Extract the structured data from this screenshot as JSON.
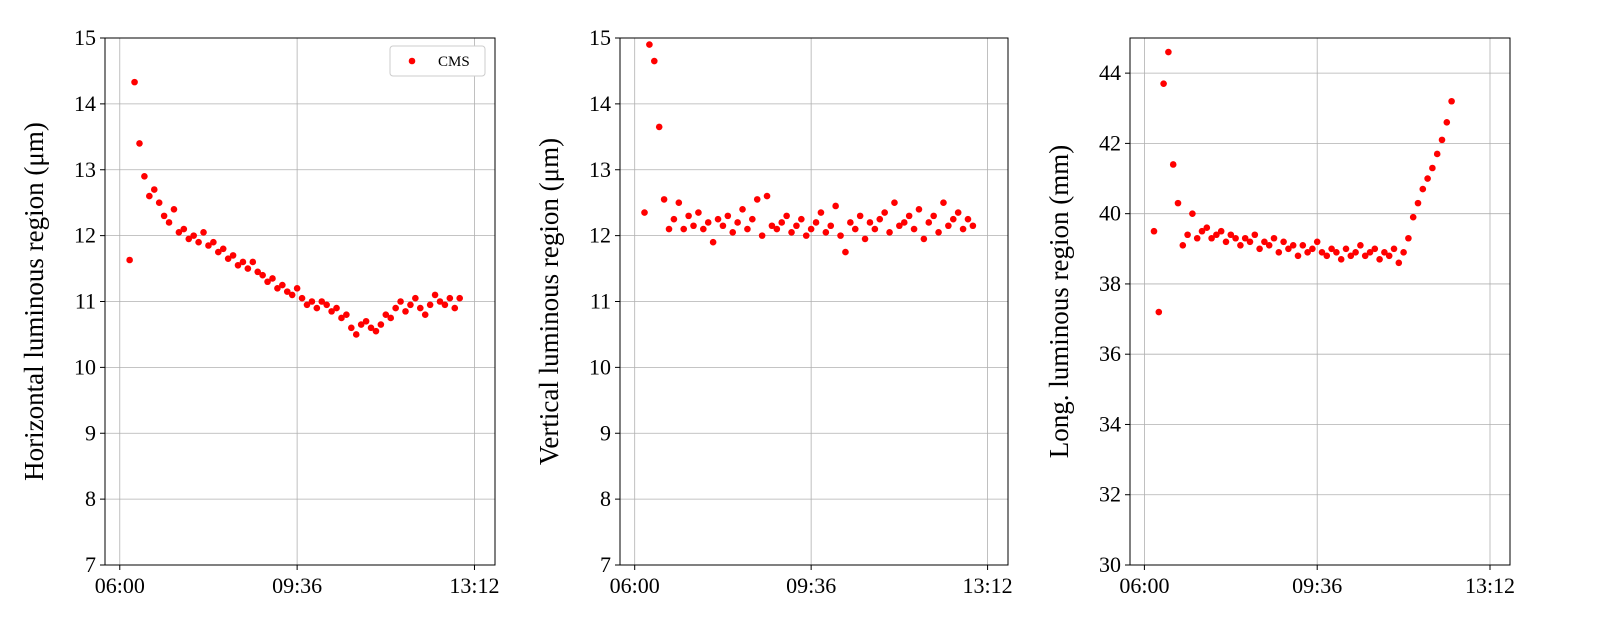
{
  "chart_data": [
    {
      "type": "scatter",
      "ylabel": "Horizontal luminous region (μm)",
      "x": [
        "06:12",
        "06:18",
        "06:24",
        "06:30",
        "06:36",
        "06:42",
        "06:48",
        "06:54",
        "07:00",
        "07:06",
        "07:12",
        "07:18",
        "07:24",
        "07:30",
        "07:36",
        "07:42",
        "07:48",
        "07:54",
        "08:00",
        "08:06",
        "08:12",
        "08:18",
        "08:24",
        "08:30",
        "08:36",
        "08:42",
        "08:48",
        "08:54",
        "09:00",
        "09:06",
        "09:12",
        "09:18",
        "09:24",
        "09:30",
        "09:36",
        "09:42",
        "09:48",
        "09:54",
        "10:00",
        "10:06",
        "10:12",
        "10:18",
        "10:24",
        "10:30",
        "10:36",
        "10:42",
        "10:48",
        "10:54",
        "11:00",
        "11:06",
        "11:12",
        "11:18",
        "11:24",
        "11:30",
        "11:36",
        "11:42",
        "11:48",
        "11:54",
        "12:00",
        "12:06",
        "12:12",
        "12:18",
        "12:24",
        "12:30",
        "12:36",
        "12:42",
        "12:48",
        "12:54"
      ],
      "series": [
        {
          "name": "CMS",
          "color": "#ff0000",
          "values": [
            11.63,
            14.33,
            13.4,
            12.9,
            12.6,
            12.7,
            12.5,
            12.3,
            12.2,
            12.4,
            12.05,
            12.1,
            11.95,
            12.0,
            11.9,
            12.05,
            11.85,
            11.9,
            11.75,
            11.8,
            11.65,
            11.7,
            11.55,
            11.6,
            11.5,
            11.6,
            11.45,
            11.4,
            11.3,
            11.35,
            11.2,
            11.25,
            11.15,
            11.1,
            11.2,
            11.05,
            10.95,
            11.0,
            10.9,
            11.0,
            10.95,
            10.85,
            10.9,
            10.75,
            10.8,
            10.6,
            10.5,
            10.65,
            10.7,
            10.6,
            10.55,
            10.65,
            10.8,
            10.75,
            10.9,
            11.0,
            10.85,
            10.95,
            11.05,
            10.9,
            10.8,
            10.95,
            11.1,
            11.0,
            10.95,
            11.05,
            10.9,
            11.05
          ]
        }
      ],
      "xlim": [
        "05:42",
        "13:37"
      ],
      "xticks": [
        "06:00",
        "09:36",
        "13:12"
      ],
      "ylim": [
        7,
        15
      ],
      "yticks": [
        7,
        8,
        9,
        10,
        11,
        12,
        13,
        14,
        15
      ],
      "grid": true,
      "legend": "upper right"
    },
    {
      "type": "scatter",
      "ylabel": "Vertical luminous region (μm)",
      "x": [
        "06:12",
        "06:18",
        "06:24",
        "06:30",
        "06:36",
        "06:42",
        "06:48",
        "06:54",
        "07:00",
        "07:06",
        "07:12",
        "07:18",
        "07:24",
        "07:30",
        "07:36",
        "07:42",
        "07:48",
        "07:54",
        "08:00",
        "08:06",
        "08:12",
        "08:18",
        "08:24",
        "08:30",
        "08:36",
        "08:42",
        "08:48",
        "08:54",
        "09:00",
        "09:06",
        "09:12",
        "09:18",
        "09:24",
        "09:30",
        "09:36",
        "09:42",
        "09:48",
        "09:54",
        "10:00",
        "10:06",
        "10:12",
        "10:18",
        "10:24",
        "10:30",
        "10:36",
        "10:42",
        "10:48",
        "10:54",
        "11:00",
        "11:06",
        "11:12",
        "11:18",
        "11:24",
        "11:30",
        "11:36",
        "11:42",
        "11:48",
        "11:54",
        "12:00",
        "12:06",
        "12:12",
        "12:18",
        "12:24",
        "12:30",
        "12:36",
        "12:42",
        "12:48",
        "12:54"
      ],
      "series": [
        {
          "color": "#ff0000",
          "values": [
            12.35,
            14.9,
            14.65,
            13.65,
            12.55,
            12.1,
            12.25,
            12.5,
            12.1,
            12.3,
            12.15,
            12.35,
            12.1,
            12.2,
            11.9,
            12.25,
            12.15,
            12.3,
            12.05,
            12.2,
            12.4,
            12.1,
            12.25,
            12.55,
            12.0,
            12.6,
            12.15,
            12.1,
            12.2,
            12.3,
            12.05,
            12.15,
            12.25,
            12.0,
            12.1,
            12.2,
            12.35,
            12.05,
            12.15,
            12.45,
            12.0,
            11.75,
            12.2,
            12.1,
            12.3,
            11.95,
            12.2,
            12.1,
            12.25,
            12.35,
            12.05,
            12.5,
            12.15,
            12.2,
            12.3,
            12.1,
            12.4,
            11.95,
            12.2,
            12.3,
            12.05,
            12.5,
            12.15,
            12.25,
            12.35,
            12.1,
            12.25,
            12.15
          ]
        }
      ],
      "xlim": [
        "05:42",
        "13:37"
      ],
      "xticks": [
        "06:00",
        "09:36",
        "13:12"
      ],
      "ylim": [
        7,
        15
      ],
      "yticks": [
        7,
        8,
        9,
        10,
        11,
        12,
        13,
        14,
        15
      ],
      "grid": true
    },
    {
      "type": "scatter",
      "ylabel": "Long. luminous region (mm)",
      "x": [
        "06:12",
        "06:18",
        "06:24",
        "06:30",
        "06:36",
        "06:42",
        "06:48",
        "06:54",
        "07:00",
        "07:06",
        "07:12",
        "07:18",
        "07:24",
        "07:30",
        "07:36",
        "07:42",
        "07:48",
        "07:54",
        "08:00",
        "08:06",
        "08:12",
        "08:18",
        "08:24",
        "08:30",
        "08:36",
        "08:42",
        "08:48",
        "08:54",
        "09:00",
        "09:06",
        "09:12",
        "09:18",
        "09:24",
        "09:30",
        "09:36",
        "09:42",
        "09:48",
        "09:54",
        "10:00",
        "10:06",
        "10:12",
        "10:18",
        "10:24",
        "10:30",
        "10:36",
        "10:42",
        "10:48",
        "10:54",
        "11:00",
        "11:06",
        "11:12",
        "11:18",
        "11:24",
        "11:30",
        "11:36",
        "11:42",
        "11:48",
        "11:54",
        "12:00",
        "12:06",
        "12:12",
        "12:18",
        "12:24"
      ],
      "series": [
        {
          "color": "#ff0000",
          "values": [
            39.5,
            37.2,
            43.7,
            44.6,
            41.4,
            40.3,
            39.1,
            39.4,
            40.0,
            39.3,
            39.5,
            39.6,
            39.3,
            39.4,
            39.5,
            39.2,
            39.4,
            39.3,
            39.1,
            39.3,
            39.2,
            39.4,
            39.0,
            39.2,
            39.1,
            39.3,
            38.9,
            39.2,
            39.0,
            39.1,
            38.8,
            39.1,
            38.9,
            39.0,
            39.2,
            38.9,
            38.8,
            39.0,
            38.9,
            38.7,
            39.0,
            38.8,
            38.9,
            39.1,
            38.8,
            38.9,
            39.0,
            38.7,
            38.9,
            38.8,
            39.0,
            38.6,
            38.9,
            39.3,
            39.9,
            40.3,
            40.7,
            41.0,
            41.3,
            41.7,
            42.1,
            42.6,
            43.2
          ]
        }
      ],
      "xlim": [
        "05:42",
        "13:37"
      ],
      "xticks": [
        "06:00",
        "09:36",
        "13:12"
      ],
      "ylim": [
        30,
        45
      ],
      "yticks": [
        30,
        32,
        34,
        36,
        38,
        40,
        42,
        44
      ],
      "grid": true
    }
  ]
}
